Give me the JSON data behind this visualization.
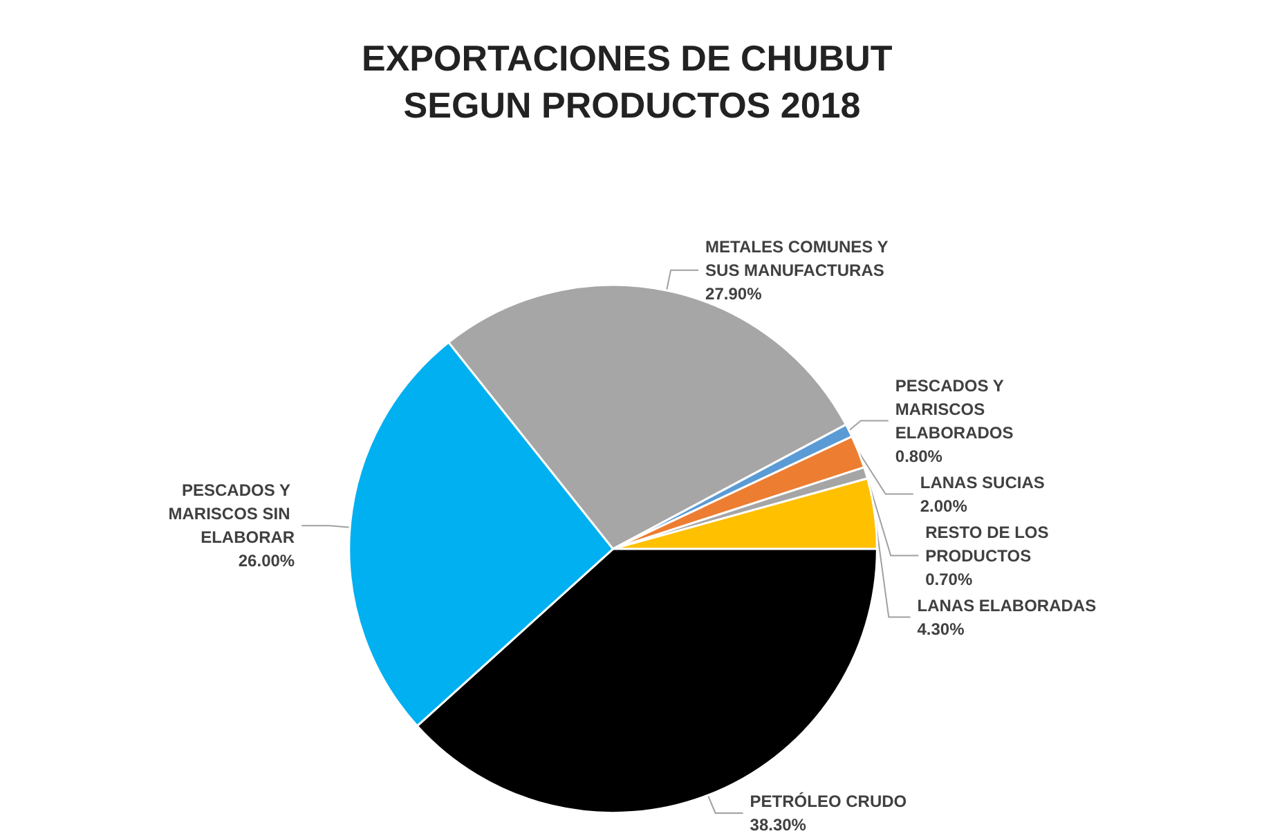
{
  "chart_data": {
    "type": "pie",
    "title": "EXPORTACIONES DE CHUBUT SEGUN PRODUCTOS 2018",
    "categories": [
      "PETRÓLEO CRUDO",
      "PESCADOS Y MARISCOS SIN ELABORAR",
      "METALES COMUNES Y SUS MANUFACTURAS",
      "PESCADOS Y MARISCOS ELABORADOS",
      "LANAS SUCIAS",
      "RESTO DE LOS PRODUCTOS",
      "LANAS ELABORADAS"
    ],
    "values": [
      38.3,
      26.0,
      27.9,
      0.8,
      2.0,
      0.7,
      4.3
    ],
    "value_labels": [
      "38.30%",
      "26.00%",
      "27.90%",
      "0.80%",
      "2.00%",
      "0.70%",
      "4.30%"
    ],
    "colors": [
      "#000000",
      "#00b0f0",
      "#a6a6a6",
      "#5b9bd5",
      "#ed7d31",
      "#a5a5a5",
      "#ffc000"
    ],
    "legend": false
  }
}
